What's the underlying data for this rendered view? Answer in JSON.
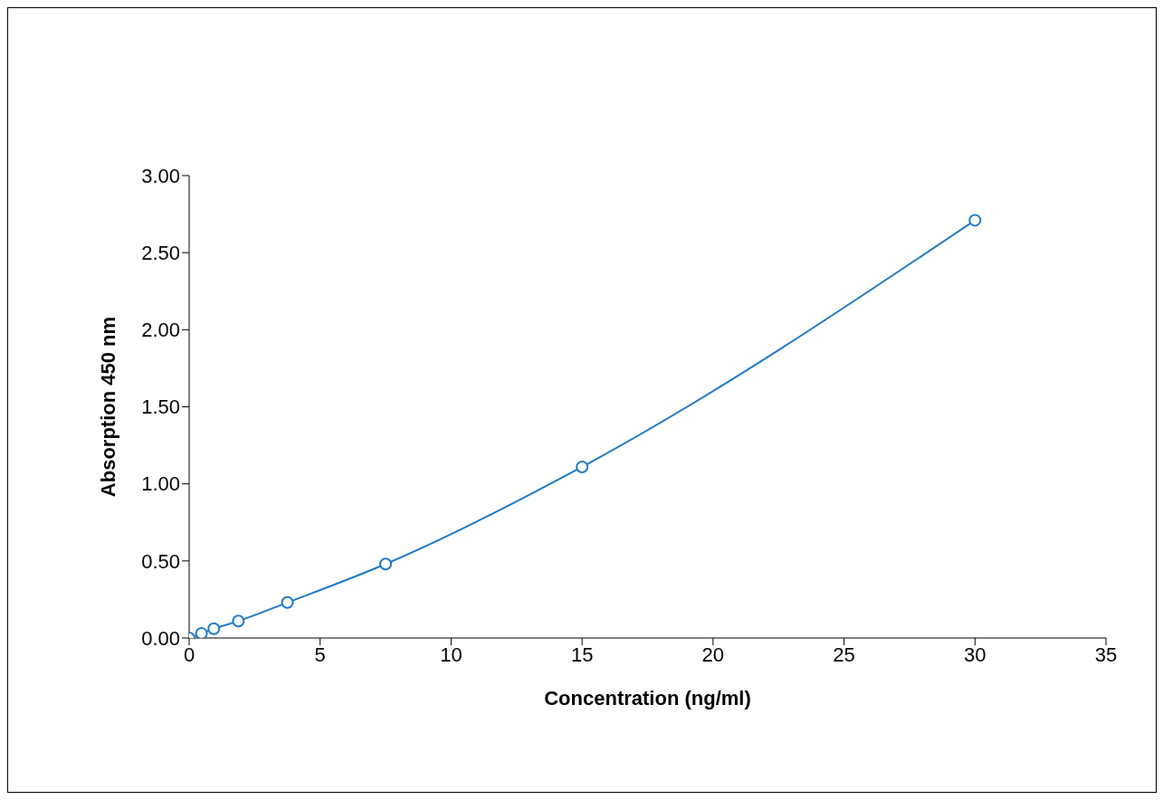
{
  "chart_data": {
    "type": "line",
    "xlabel": "Concentration (ng/ml)",
    "ylabel": "Absorption 450 nm",
    "x": [
      0,
      0.47,
      0.94,
      1.88,
      3.75,
      7.5,
      15,
      30
    ],
    "series": [
      {
        "color": "#1f7ac9",
        "values": [
          0,
          0.03,
          0.06,
          0.11,
          0.23,
          0.48,
          1.11,
          2.71
        ]
      }
    ],
    "xlim": [
      0,
      35
    ],
    "xticks": [
      0,
      5,
      10,
      15,
      20,
      25,
      30,
      35
    ],
    "ylim": [
      0,
      3
    ],
    "yticks": [
      {
        "value": 0,
        "label": "0.00"
      },
      {
        "value": 0.5,
        "label": "0.50"
      },
      {
        "value": 1,
        "label": "1.00"
      },
      {
        "value": 1.5,
        "label": "1.50"
      },
      {
        "value": 2,
        "label": "2.00"
      },
      {
        "value": 2.5,
        "label": "2.50"
      },
      {
        "value": 3,
        "label": "3.00"
      }
    ],
    "grid": false,
    "legend": false,
    "marker": "circle",
    "line_style": "solid"
  }
}
